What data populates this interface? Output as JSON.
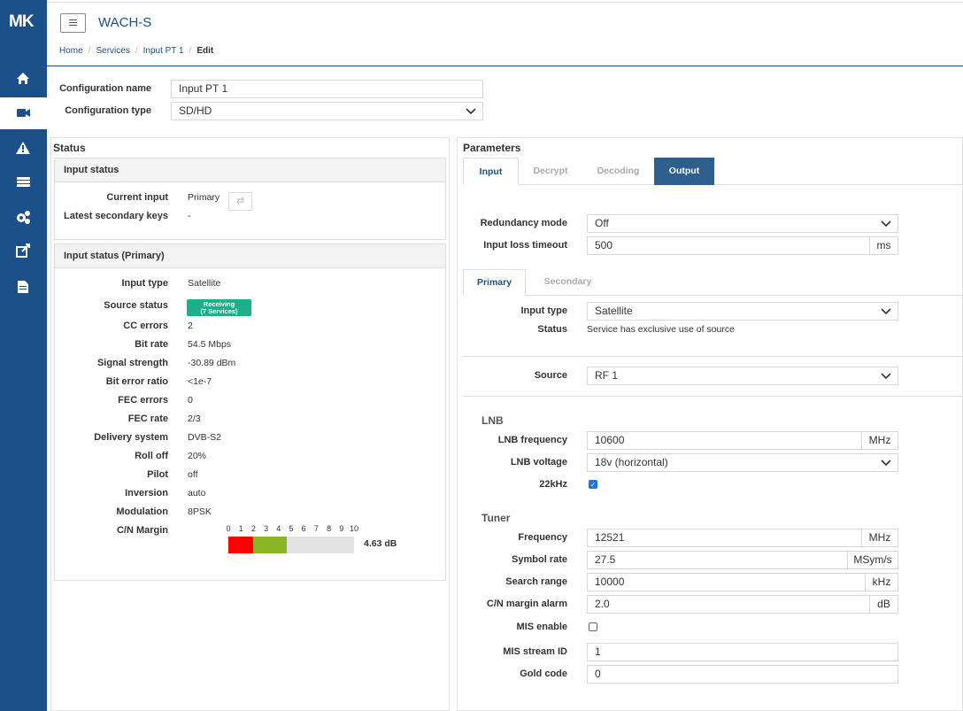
{
  "sidebar": {
    "logo": "MK"
  },
  "header": {
    "title": "WACH-S",
    "breadcrumb": [
      "Home",
      "Services",
      "Input PT 1",
      "Edit"
    ]
  },
  "config": [
    {
      "label": "Configuration name",
      "value": "Input PT 1",
      "control": "input"
    },
    {
      "label": "Configuration type",
      "value": "SD/HD",
      "control": "select"
    }
  ],
  "status": {
    "title": "Status",
    "input_status": {
      "title": "Input status",
      "rows": [
        {
          "label": "Current input",
          "value": "Primary"
        },
        {
          "label": "Latest secondary keys",
          "value": "-"
        }
      ]
    },
    "primary": {
      "title": "Input status (Primary)",
      "rows": [
        {
          "label": "Input type",
          "value": "Satellite"
        },
        {
          "label": "Source status",
          "badge": [
            "Receiving",
            "(7 Services)"
          ]
        },
        {
          "label": "CC errors",
          "value": "2"
        },
        {
          "label": "Bit rate",
          "value": "54.5 Mbps"
        },
        {
          "label": "Signal strength",
          "value": "-30.89 dBm"
        },
        {
          "label": "Bit error ratio",
          "value": "<1e-7"
        },
        {
          "label": "FEC errors",
          "value": "0"
        },
        {
          "label": "FEC rate",
          "value": "2/3"
        },
        {
          "label": "Delivery system",
          "value": "DVB-S2"
        },
        {
          "label": "Roll off",
          "value": "20%"
        },
        {
          "label": "Pilot",
          "value": "off"
        },
        {
          "label": "Inversion",
          "value": "auto"
        },
        {
          "label": "Modulation",
          "value": "8PSK"
        },
        {
          "label": "C/N Margin",
          "meter": {
            "ticks": [
              0,
              1,
              2,
              3,
              4,
              5,
              6,
              7,
              8,
              9,
              10
            ],
            "red_to": 2,
            "value": 4.63,
            "value_label": "4.63 dB"
          }
        }
      ]
    }
  },
  "parameters": {
    "title": "Parameters",
    "tabs": [
      {
        "label": "Input",
        "state": "active"
      },
      {
        "label": "Decrypt",
        "state": "disabled"
      },
      {
        "label": "Decoding",
        "state": "disabled"
      },
      {
        "label": "Output",
        "state": "selected"
      }
    ],
    "general": [
      {
        "label": "Redundancy mode",
        "value": "Off",
        "control": "select"
      },
      {
        "label": "Input loss timeout",
        "value": "500",
        "control": "input",
        "unit": "ms"
      }
    ],
    "subtabs": [
      {
        "label": "Primary",
        "state": "active"
      },
      {
        "label": "Secondary",
        "state": "inactive"
      }
    ],
    "source_type": [
      {
        "label": "Input type",
        "value": "Satellite",
        "control": "select"
      },
      {
        "label": "Status",
        "value": "Service has exclusive use of source",
        "control": "text"
      }
    ],
    "source": [
      {
        "label": "Source",
        "value": "RF 1",
        "control": "select"
      }
    ],
    "lnb": {
      "title": "LNB",
      "fields": [
        {
          "label": "LNB frequency",
          "value": "10600",
          "control": "input",
          "unit": "MHz"
        },
        {
          "label": "LNB voltage",
          "value": "18v (horizontal)",
          "control": "select"
        },
        {
          "label": "22kHz",
          "control": "checkbox",
          "checked": true
        }
      ]
    },
    "tuner": {
      "title": "Tuner",
      "fields": [
        {
          "label": "Frequency",
          "value": "12521",
          "control": "input",
          "unit": "MHz"
        },
        {
          "label": "Symbol rate",
          "value": "27.5",
          "control": "input",
          "unit": "MSym/s"
        },
        {
          "label": "Search range",
          "value": "10000",
          "control": "input",
          "unit": "kHz"
        },
        {
          "label": "C/N margin alarm",
          "value": "2.0",
          "control": "input",
          "unit": "dB"
        },
        {
          "label": "MIS enable",
          "control": "checkbox",
          "checked": false
        },
        {
          "label": "MIS stream ID",
          "value": "1",
          "control": "input"
        },
        {
          "label": "Gold code",
          "value": "0",
          "control": "input"
        }
      ]
    }
  }
}
